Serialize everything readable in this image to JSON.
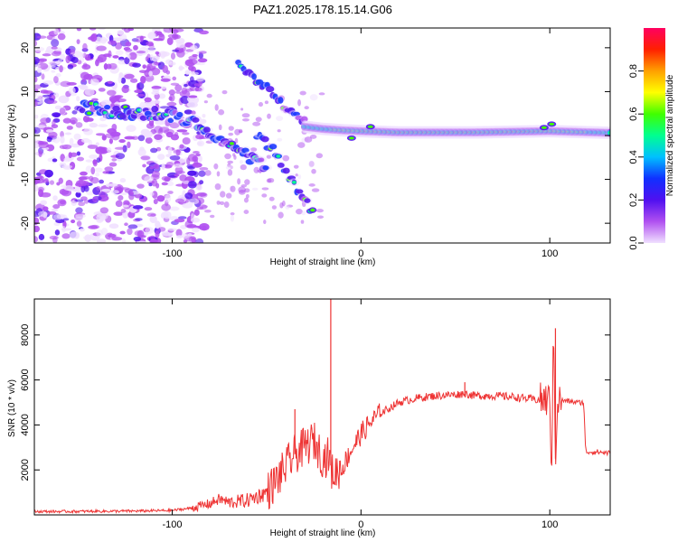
{
  "figure": {
    "title": "PAZ1.2025.178.15.14.G06"
  },
  "chart_data": [
    {
      "type": "heatmap",
      "xlabel": "Height of straight line (km)",
      "ylabel": "Frequency (Hz)",
      "xlim": [
        -173,
        132
      ],
      "ylim": [
        -24.5,
        24.5
      ],
      "xticks": [
        -100,
        0,
        100
      ],
      "xtick_labels": [
        "-100",
        "0",
        "100"
      ],
      "yticks": [
        -20,
        -10,
        0,
        10,
        20
      ],
      "ytick_labels": [
        "-20",
        "-10",
        "0",
        "10",
        "20"
      ],
      "grid": false,
      "colorbar": {
        "label": "Normalized spectral amplitude",
        "range": [
          0,
          1
        ],
        "ticks": [
          0.0,
          0.2,
          0.4,
          0.6,
          0.8
        ],
        "tick_labels": [
          "0.0",
          "0.2",
          "0.4",
          "0.6",
          "0.8"
        ],
        "colors": [
          "#f0e0ff",
          "#b050f0",
          "#5010f0",
          "#1030ff",
          "#00c0ff",
          "#00ff90",
          "#40ff00",
          "#ffff00",
          "#ffa000",
          "#ff2000",
          "#ff0060"
        ]
      },
      "features": {
        "carrier_ridge": {
          "x": [
            -30,
            -20,
            -10,
            0,
            20,
            60,
            100,
            132
          ],
          "y": [
            2,
            1.5,
            1.2,
            1.0,
            0.7,
            0.7,
            1.0,
            0.6
          ]
        },
        "descending_branch": {
          "x": [
            -150,
            -130,
            -100,
            -85,
            -70,
            -60,
            -50
          ],
          "y": [
            6.5,
            5.5,
            4.5,
            2.5,
            -2,
            -5,
            -7
          ]
        },
        "upper_branch": {
          "x": [
            -65,
            -50,
            -40,
            -30
          ],
          "y": [
            16,
            11,
            6,
            3
          ]
        },
        "lower_branch": {
          "x": [
            -55,
            -45,
            -38,
            -30,
            -25
          ],
          "y": [
            0,
            -4,
            -10,
            -14,
            -18
          ]
        }
      }
    },
    {
      "type": "line",
      "xlabel": "Height of straight line (km)",
      "ylabel": "SNR (10 * v/v)",
      "xlim": [
        -173,
        132
      ],
      "ylim": [
        0,
        9600
      ],
      "xticks": [
        -100,
        0,
        100
      ],
      "xtick_labels": [
        "-100",
        "0",
        "100"
      ],
      "yticks": [
        2000,
        4000,
        6000,
        8000
      ],
      "ytick_labels": [
        "2000",
        "4000",
        "6000",
        "8000"
      ],
      "grid": false,
      "line_color": "#ee3333",
      "series": [
        {
          "x": [
            -173,
            -160,
            -140,
            -120,
            -100,
            -90,
            -80,
            -75,
            -70,
            -60,
            -50,
            -45,
            -40,
            -35,
            -30,
            -25,
            -20,
            -17,
            -15,
            -10,
            -5,
            0,
            5,
            10,
            20,
            30,
            40,
            50,
            55,
            60,
            70,
            80,
            90,
            95,
            100,
            101,
            102,
            103,
            104,
            105,
            110,
            115,
            118,
            119,
            120,
            125,
            132
          ],
          "y": [
            150,
            150,
            160,
            170,
            200,
            300,
            500,
            700,
            550,
            650,
            1000,
            1500,
            2100,
            2700,
            3000,
            3300,
            2500,
            2600,
            1800,
            2100,
            2900,
            3600,
            4100,
            4500,
            5000,
            5200,
            5300,
            5350,
            5400,
            5300,
            5300,
            5250,
            5150,
            5100,
            5100,
            2100,
            8300,
            2500,
            5000,
            5100,
            5050,
            5000,
            5000,
            2800,
            2800,
            2800,
            2750
          ]
        }
      ],
      "spikes": [
        {
          "x": -16,
          "y": 9600
        },
        {
          "x": -35,
          "y": 4700
        },
        {
          "x": 55,
          "y": 5900
        },
        {
          "x": 97,
          "y": 5600
        },
        {
          "x": 103,
          "y": 8300
        }
      ]
    }
  ]
}
